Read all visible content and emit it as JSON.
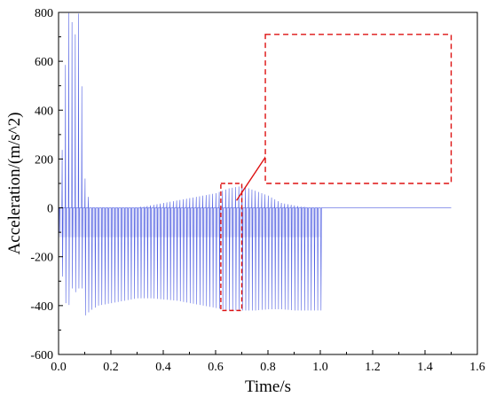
{
  "chart_data": {
    "type": "line",
    "title": "",
    "xlabel": "Time/s",
    "ylabel": "Acceleration/(m/s^2)",
    "xlim": [
      0.0,
      1.6
    ],
    "ylim": [
      -600,
      800
    ],
    "x_ticks": [
      0.0,
      0.2,
      0.4,
      0.6,
      0.8,
      1.0,
      1.2,
      1.4,
      1.6
    ],
    "x_tick_labels": [
      "0.0",
      "0.2",
      "0.4",
      "0.6",
      "0.8",
      "1.0",
      "1.2",
      "1.4",
      "1.6"
    ],
    "y_ticks": [
      -600,
      -400,
      -200,
      0,
      200,
      400,
      600,
      800
    ],
    "y_tick_labels": [
      "-600",
      "-400",
      "-200",
      "0",
      "200",
      "400",
      "600",
      "800"
    ],
    "grid": false,
    "legend": "none",
    "series_color": "#3344dd",
    "series": [
      {
        "x": [
          0.0,
          0.02,
          0.03,
          0.04,
          0.05,
          0.06,
          0.07,
          0.08,
          0.09,
          0.1,
          0.12,
          0.15,
          0.2,
          0.25,
          0.3,
          0.35,
          0.4,
          0.45,
          0.5,
          0.55,
          0.6,
          0.65,
          0.7,
          0.75,
          0.8,
          0.85,
          0.9,
          0.95,
          1.0,
          1.01,
          1.5
        ],
        "peak_values": [
          0,
          380,
          790,
          800,
          760,
          680,
          800,
          790,
          400,
          120,
          0,
          0,
          0,
          0,
          0,
          10,
          20,
          30,
          40,
          50,
          60,
          80,
          90,
          70,
          50,
          20,
          10,
          0,
          0,
          0,
          0
        ],
        "trough_values": [
          0,
          -450,
          -330,
          -420,
          -330,
          -350,
          -330,
          -330,
          -330,
          -440,
          -420,
          -400,
          -390,
          -380,
          -370,
          -370,
          -375,
          -380,
          -390,
          -400,
          -410,
          -420,
          -420,
          -420,
          -415,
          -415,
          -420,
          -420,
          -420,
          0,
          0
        ]
      }
    ],
    "annotations": [
      {
        "type": "dashed-box",
        "color": "#dd1111",
        "x_range": [
          0.62,
          0.7
        ],
        "y_range": [
          -420,
          100
        ]
      },
      {
        "type": "arrow",
        "color": "#dd1111",
        "from": [
          0.68,
          30
        ],
        "to": [
          0.86,
          320
        ]
      },
      {
        "type": "inset",
        "color": "#dd1111",
        "x_range": [
          0.79,
          1.5
        ],
        "y_range": [
          100,
          710
        ]
      }
    ]
  }
}
